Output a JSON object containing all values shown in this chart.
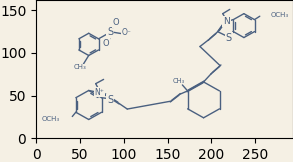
{
  "bg": "#f5f0e4",
  "lc": "#4a6080",
  "lw": 1.0,
  "figsize": [
    2.93,
    1.62
  ],
  "dpi": 100,
  "xlim": [
    0,
    293
  ],
  "ylim": [
    162,
    0
  ]
}
